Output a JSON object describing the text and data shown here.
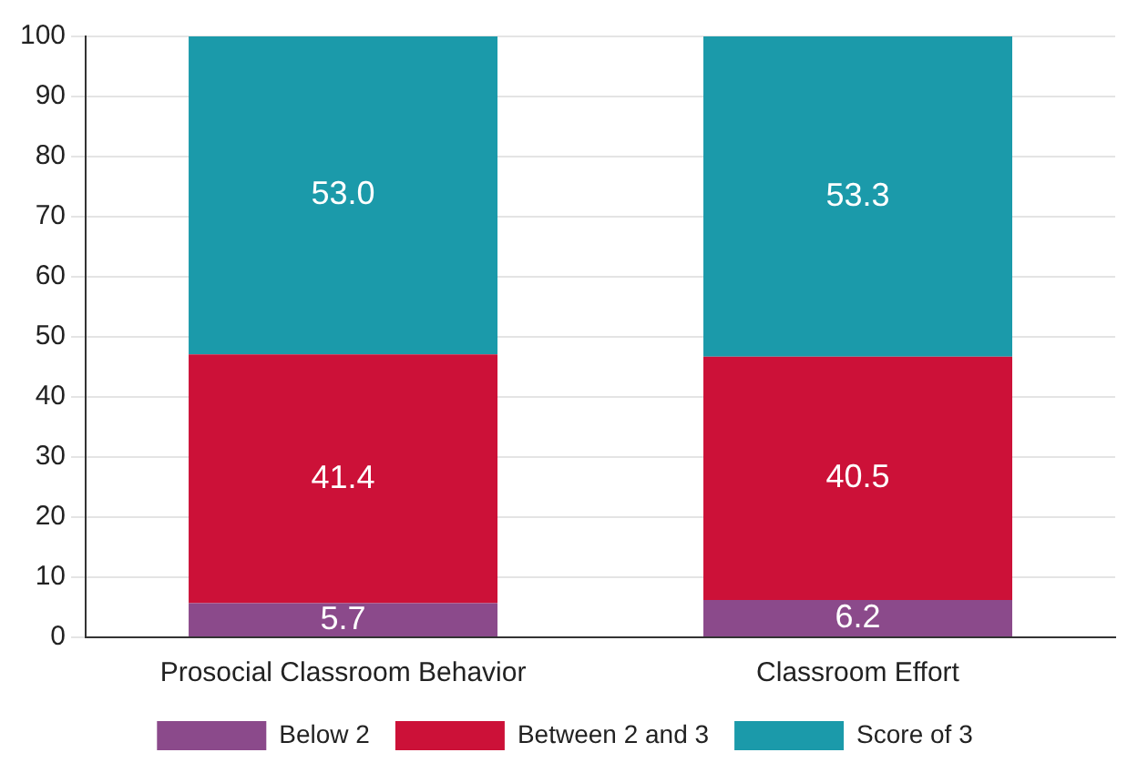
{
  "chart_data": {
    "type": "bar",
    "stacked": true,
    "categories": [
      "Prosocial Classroom Behavior",
      "Classroom Effort"
    ],
    "series": [
      {
        "name": "Below 2",
        "color": "#8b4a8b",
        "values": [
          5.7,
          6.2
        ]
      },
      {
        "name": "Between 2 and 3",
        "color": "#cc1138",
        "values": [
          41.4,
          40.5
        ]
      },
      {
        "name": "Score of 3",
        "color": "#1b9aaa",
        "values": [
          53.0,
          53.3
        ]
      }
    ],
    "value_labels": [
      [
        "5.7",
        "6.2"
      ],
      [
        "41.4",
        "40.5"
      ],
      [
        "53.0",
        "53.3"
      ]
    ],
    "ylim": [
      0,
      100
    ],
    "yticks": [
      0,
      10,
      20,
      30,
      40,
      50,
      60,
      70,
      80,
      90,
      100
    ],
    "grid": "y",
    "legend": "bottom"
  }
}
